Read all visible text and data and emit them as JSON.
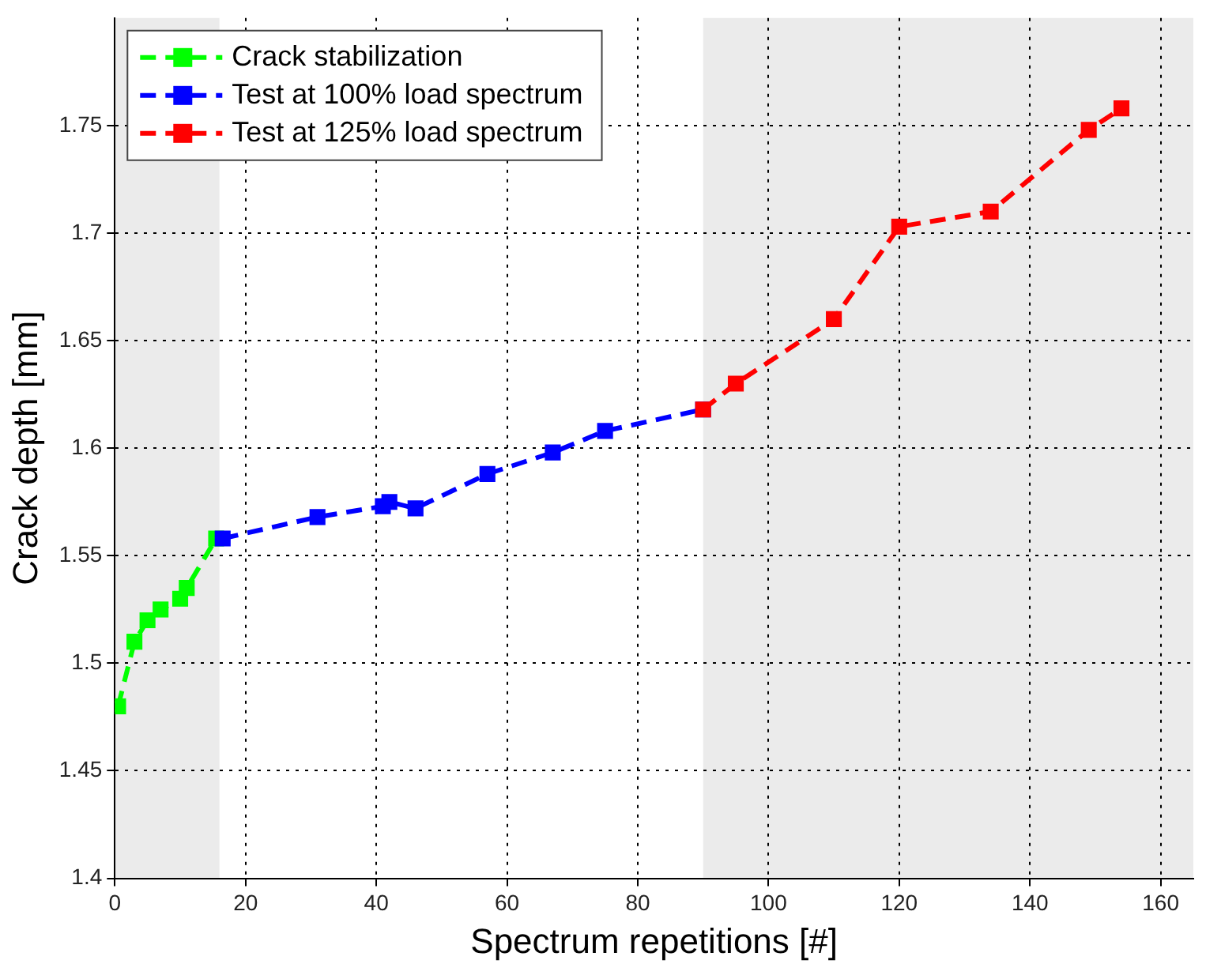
{
  "chart_data": {
    "type": "line",
    "xlabel": "Spectrum repetitions [#]",
    "ylabel": "Crack depth [mm]",
    "xlim": [
      0,
      165
    ],
    "xticks": [
      0,
      20,
      40,
      60,
      80,
      100,
      120,
      140,
      160
    ],
    "ylim": [
      1.4,
      1.8
    ],
    "yticks": [
      1.4,
      1.45,
      1.5,
      1.55,
      1.6,
      1.65,
      1.7,
      1.75
    ],
    "grid": true,
    "legend": "top left",
    "marker": "square",
    "line_style": "dashed",
    "bands": [
      {
        "axis": "x",
        "from": 0,
        "to": 16,
        "color": "#ebebeb"
      },
      {
        "axis": "x",
        "from": 90,
        "to": 165,
        "color": "#ebebeb"
      }
    ],
    "series": [
      {
        "name": "Crack stabilization",
        "color": "#00ff00",
        "x": [
          0.5,
          3,
          5,
          7,
          10,
          11,
          15.5
        ],
        "values": [
          1.48,
          1.51,
          1.52,
          1.525,
          1.53,
          1.535,
          1.558
        ]
      },
      {
        "name": "Test at 100% load spectrum",
        "color": "#0000ff",
        "x": [
          16.5,
          31,
          41,
          42,
          46,
          57,
          67,
          75,
          90
        ],
        "values": [
          1.558,
          1.568,
          1.573,
          1.575,
          1.572,
          1.588,
          1.598,
          1.608,
          1.618
        ]
      },
      {
        "name": "Test at 125% load spectrum",
        "color": "#ff0000",
        "x": [
          90,
          95,
          110,
          120,
          134,
          149,
          154
        ],
        "values": [
          1.618,
          1.63,
          1.66,
          1.703,
          1.71,
          1.748,
          1.758
        ]
      }
    ]
  }
}
